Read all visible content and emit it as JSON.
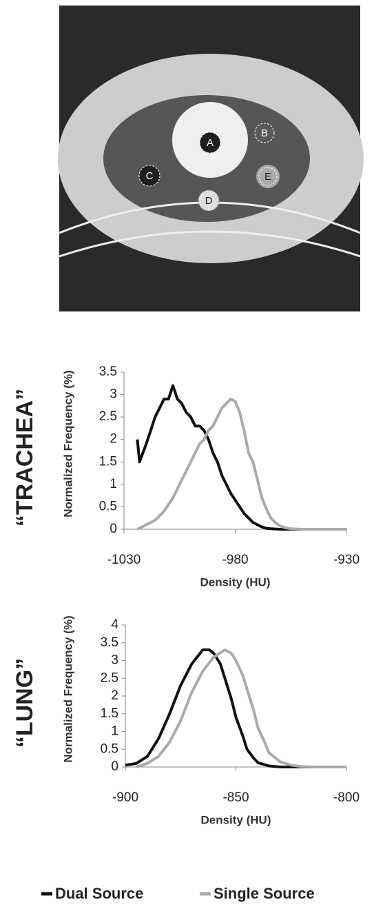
{
  "image": {
    "labels": [
      "A",
      "B",
      "C",
      "D",
      "E"
    ]
  },
  "chart_data": [
    {
      "type": "line",
      "side_label": "“TRACHEA”",
      "ylabel": "Normalized Frequency (%)",
      "xlabel": "Density (HU)",
      "xlim": [
        -1030,
        -930
      ],
      "xticks": [
        -1030,
        -980,
        -930
      ],
      "ylim": [
        0,
        3.5
      ],
      "yticks": [
        0,
        0.5,
        1,
        1.5,
        2,
        2.5,
        3,
        3.5
      ],
      "series": [
        {
          "name": "Dual Source",
          "color": "#111111",
          "x": [
            -1024,
            -1023,
            -1020,
            -1018,
            -1016,
            -1014,
            -1012,
            -1010,
            -1008,
            -1006,
            -1004,
            -1002,
            -1000,
            -998,
            -996,
            -994,
            -992,
            -990,
            -988,
            -986,
            -984,
            -982,
            -980,
            -978,
            -976,
            -974,
            -972,
            -970,
            -968,
            -966,
            -964,
            -960,
            -940,
            -930
          ],
          "values": [
            2.0,
            1.5,
            1.9,
            2.2,
            2.5,
            2.7,
            2.9,
            2.9,
            3.2,
            2.9,
            2.8,
            2.6,
            2.5,
            2.3,
            2.3,
            2.2,
            2.0,
            1.7,
            1.5,
            1.2,
            1.0,
            0.8,
            0.65,
            0.5,
            0.35,
            0.25,
            0.15,
            0.1,
            0.05,
            0.02,
            0.01,
            0,
            0,
            0
          ]
        },
        {
          "name": "Single Source",
          "color": "#aaaaaa",
          "x": [
            -1024,
            -1020,
            -1016,
            -1012,
            -1008,
            -1004,
            -1000,
            -996,
            -994,
            -992,
            -990,
            -988,
            -986,
            -984,
            -982,
            -980,
            -978,
            -976,
            -974,
            -972,
            -970,
            -968,
            -966,
            -964,
            -962,
            -960,
            -958,
            -955,
            -950,
            -930
          ],
          "values": [
            0,
            0.1,
            0.2,
            0.4,
            0.7,
            1.1,
            1.5,
            1.9,
            2.0,
            2.2,
            2.3,
            2.5,
            2.7,
            2.8,
            2.9,
            2.85,
            2.6,
            2.2,
            1.7,
            1.5,
            1.1,
            0.7,
            0.45,
            0.25,
            0.15,
            0.08,
            0.04,
            0.01,
            0,
            0
          ]
        }
      ]
    },
    {
      "type": "line",
      "side_label": "“LUNG”",
      "ylabel": "Normalized Frequency (%)",
      "xlabel": "Density (HU)",
      "xlim": [
        -900,
        -800
      ],
      "xticks": [
        -900,
        -850,
        -800
      ],
      "ylim": [
        0,
        4
      ],
      "yticks": [
        0,
        0.5,
        1,
        1.5,
        2,
        2.5,
        3,
        3.5,
        4
      ],
      "series": [
        {
          "name": "Dual Source",
          "color": "#111111",
          "x": [
            -900,
            -895,
            -890,
            -885,
            -880,
            -875,
            -870,
            -865,
            -862,
            -860,
            -857,
            -855,
            -852,
            -850,
            -847,
            -845,
            -842,
            -840,
            -835,
            -830,
            -800
          ],
          "values": [
            0.05,
            0.1,
            0.3,
            0.8,
            1.5,
            2.3,
            2.9,
            3.3,
            3.3,
            3.2,
            2.9,
            2.5,
            1.9,
            1.4,
            0.9,
            0.5,
            0.25,
            0.12,
            0.03,
            0,
            0
          ]
        },
        {
          "name": "Single Source",
          "color": "#aaaaaa",
          "x": [
            -895,
            -890,
            -885,
            -880,
            -875,
            -870,
            -865,
            -860,
            -855,
            -852,
            -850,
            -847,
            -845,
            -842,
            -840,
            -837,
            -835,
            -830,
            -825,
            -820,
            -815,
            -800
          ],
          "values": [
            0,
            0.1,
            0.3,
            0.7,
            1.3,
            2.1,
            2.7,
            3.1,
            3.3,
            3.2,
            3.0,
            2.6,
            2.2,
            1.6,
            1.1,
            0.7,
            0.4,
            0.15,
            0.05,
            0.01,
            0,
            0
          ]
        }
      ]
    }
  ]
}
